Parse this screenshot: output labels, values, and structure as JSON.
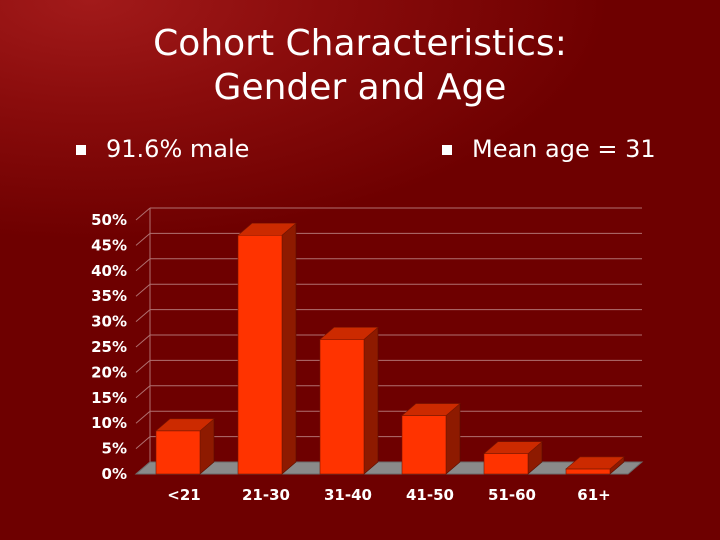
{
  "slide": {
    "title_line1": "Cohort Characteristics:",
    "title_line2": "Gender and Age",
    "bullets": [
      "91.6% male",
      "Mean age = 31"
    ]
  },
  "colors": {
    "background": "#6e0000",
    "bar_front": "#ff3300",
    "bar_top": "#cc2a00",
    "bar_side": "#8e1a00",
    "floor": "#8a8a8a",
    "text": "#ffffff"
  },
  "chart_data": {
    "type": "bar",
    "categories": [
      "<21",
      "21-30",
      "31-40",
      "41-50",
      "51-60",
      "61+"
    ],
    "values": [
      8.5,
      47,
      26.5,
      11.5,
      4,
      1
    ],
    "y_ticks": [
      "0%",
      "5%",
      "10%",
      "15%",
      "20%",
      "25%",
      "30%",
      "35%",
      "40%",
      "45%",
      "50%"
    ],
    "ylim": [
      0,
      50
    ],
    "grid": true,
    "three_d": true,
    "legend": "none"
  }
}
